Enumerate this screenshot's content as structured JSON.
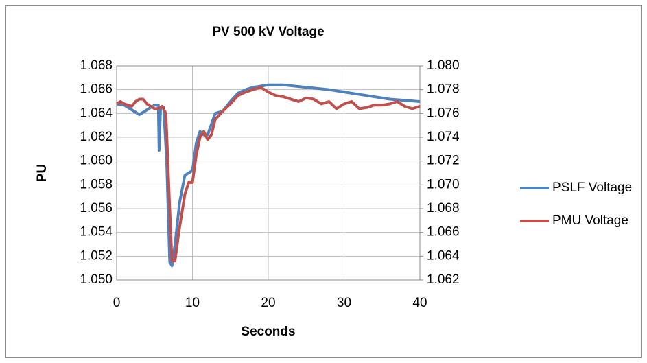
{
  "chart_data": {
    "type": "line",
    "title": "PV 500 kV Voltage",
    "xlabel": "Seconds",
    "ylabel": "PU",
    "xlim": [
      0,
      40
    ],
    "xticks": [
      0,
      10,
      20,
      30,
      40
    ],
    "ylim": [
      1.05,
      1.068
    ],
    "yticks": [
      {
        "value": 1.05,
        "label": "1.050"
      },
      1.052,
      1.054,
      1.056,
      1.058,
      {
        "value": 1.06,
        "label": "1.060"
      },
      1.062,
      1.064,
      1.066,
      1.068
    ],
    "y2lim": [
      1.062,
      1.08
    ],
    "y2ticks": [
      1.062,
      1.064,
      1.066,
      1.068,
      {
        "value": 1.07,
        "label": "1.070"
      },
      1.072,
      1.074,
      1.076,
      1.078,
      {
        "value": 1.08,
        "label": "1.080"
      }
    ],
    "grid": true,
    "legend": "right",
    "series": [
      {
        "name": "PSLF Voltage",
        "color": "#4f81bd",
        "x": [
          0,
          1,
          2,
          3,
          4,
          5,
          5.5,
          5.6,
          5.8,
          6.2,
          6.6,
          7,
          7.3,
          7.7,
          8.3,
          9,
          9.5,
          10,
          10.5,
          11,
          11.5,
          12,
          13,
          14,
          15,
          16,
          17,
          18,
          19,
          20,
          22,
          25,
          28,
          30,
          33,
          36,
          38,
          40
        ],
        "values": [
          1.0648,
          1.0647,
          1.0643,
          1.0639,
          1.0643,
          1.0647,
          1.0647,
          1.0609,
          1.0645,
          1.0645,
          1.06,
          1.0515,
          1.0512,
          1.053,
          1.0565,
          1.0588,
          1.059,
          1.0592,
          1.0615,
          1.0625,
          1.0622,
          1.0622,
          1.064,
          1.0642,
          1.065,
          1.0657,
          1.066,
          1.0662,
          1.0663,
          1.0664,
          1.0664,
          1.0662,
          1.066,
          1.0658,
          1.0655,
          1.0652,
          1.0651,
          1.065
        ]
      },
      {
        "name": "PMU Voltage",
        "color": "#c0504d",
        "axis": "y2",
        "x": [
          0,
          0.5,
          1,
          2,
          2.5,
          3,
          3.5,
          4,
          5,
          5.5,
          6,
          6.5,
          7,
          7.3,
          7.7,
          8.2,
          9,
          9.5,
          10,
          10.5,
          11,
          11.5,
          12,
          12.5,
          13,
          14,
          15,
          16,
          17,
          18,
          19,
          20,
          21,
          22,
          23,
          24,
          25,
          26,
          27,
          28,
          29,
          30,
          31,
          32,
          33,
          34,
          35,
          36,
          37,
          38,
          39,
          40
        ],
        "values": [
          1.0768,
          1.077,
          1.0768,
          1.0766,
          1.077,
          1.0772,
          1.0772,
          1.0768,
          1.0764,
          1.0764,
          1.0766,
          1.076,
          1.068,
          1.0636,
          1.0636,
          1.066,
          1.0692,
          1.0702,
          1.0702,
          1.0725,
          1.074,
          1.0745,
          1.0738,
          1.0742,
          1.0755,
          1.0762,
          1.0768,
          1.0775,
          1.0778,
          1.078,
          1.0782,
          1.0778,
          1.0775,
          1.0774,
          1.0772,
          1.077,
          1.0773,
          1.0772,
          1.0768,
          1.077,
          1.0764,
          1.0768,
          1.077,
          1.0764,
          1.0765,
          1.0767,
          1.0767,
          1.0768,
          1.077,
          1.0766,
          1.0764,
          1.0766
        ]
      }
    ]
  }
}
